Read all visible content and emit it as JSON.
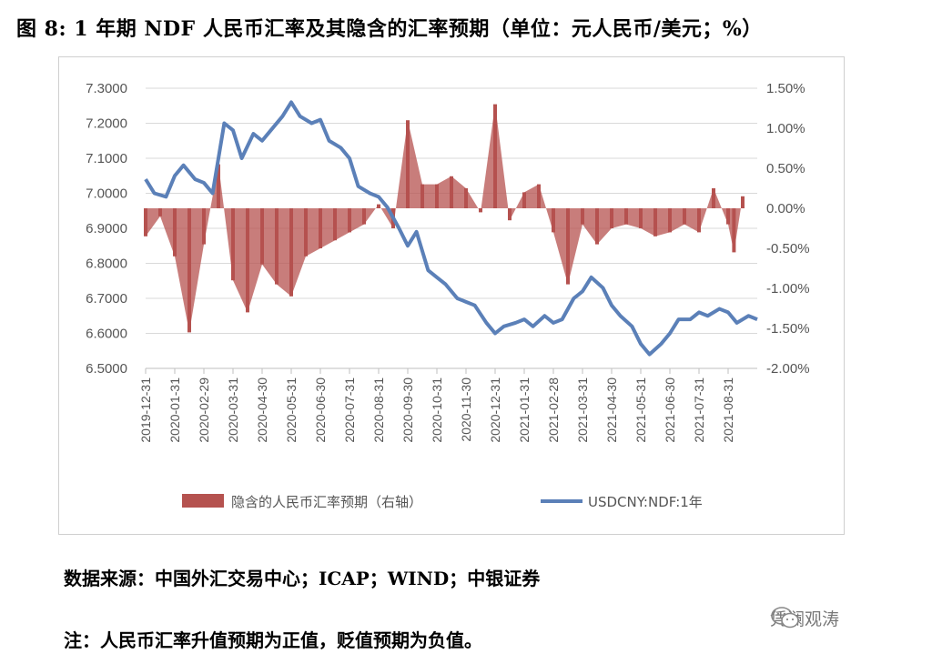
{
  "title": "图 8: 1 年期 NDF 人民币汇率及其隐含的汇率预期（单位：元人民币/美元；%）",
  "source": "数据来源：中国外汇交易中心；ICAP；WIND；中银证券",
  "note": "注：人民币汇率升值预期为正值，贬值预期为负值。",
  "watermark": "凭澜观涛",
  "colors": {
    "bar": "#b5524f",
    "line": "#5b80b8",
    "grid": "#d9d9d9"
  },
  "chart_data": {
    "type": "bar+line",
    "title": "",
    "y_left": {
      "min": 6.5,
      "max": 7.3,
      "ticks": [
        "7.3000",
        "7.2000",
        "7.1000",
        "7.0000",
        "6.9000",
        "6.8000",
        "6.7000",
        "6.6000",
        "6.5000"
      ]
    },
    "y_right": {
      "min": -2.0,
      "max": 1.5,
      "ticks": [
        "1.50%",
        "1.00%",
        "0.50%",
        "0.00%",
        "-0.50%",
        "-1.00%",
        "-1.50%",
        "-2.00%"
      ]
    },
    "x_ticks": [
      "2019-12-31",
      "2020-01-31",
      "2020-02-29",
      "2020-03-31",
      "2020-04-30",
      "2020-05-31",
      "2020-06-30",
      "2020-07-31",
      "2020-08-31",
      "2020-09-30",
      "2020-10-31",
      "2020-11-30",
      "2020-12-31",
      "2021-01-31",
      "2021-02-28",
      "2021-03-31",
      "2021-04-30",
      "2021-05-31",
      "2021-06-30",
      "2021-07-31",
      "2021-08-31"
    ],
    "grid": true,
    "legend_position": "bottom",
    "series": [
      {
        "name": "隐含的人民币汇率预期（右轴）",
        "type": "bar",
        "axis": "right",
        "unit": "%",
        "x": [
          0,
          0.5,
          1,
          1.5,
          2,
          2.5,
          3,
          3.5,
          4,
          4.5,
          5,
          5.5,
          6,
          6.5,
          7,
          7.5,
          8,
          8.5,
          9,
          9.5,
          10,
          10.5,
          11,
          11.5,
          12,
          12.5,
          13,
          13.5,
          14,
          14.5,
          15,
          15.5,
          16,
          16.5,
          17,
          17.5,
          18,
          18.5,
          19,
          19.5,
          20,
          20.2,
          20.5
        ],
        "values": [
          -0.35,
          -0.1,
          -0.6,
          -1.55,
          -0.45,
          0.55,
          -0.9,
          -1.3,
          -0.7,
          -0.95,
          -1.1,
          -0.6,
          -0.5,
          -0.4,
          -0.3,
          -0.2,
          0.05,
          -0.25,
          1.1,
          0.3,
          0.3,
          0.4,
          0.25,
          -0.05,
          1.3,
          -0.15,
          0.2,
          0.3,
          -0.3,
          -0.95,
          -0.2,
          -0.45,
          -0.25,
          -0.2,
          -0.25,
          -0.35,
          -0.3,
          -0.2,
          -0.3,
          0.25,
          -0.2,
          -0.55,
          0.15
        ]
      },
      {
        "name": "USDCNY:NDF:1年",
        "type": "line",
        "axis": "left",
        "x": [
          0,
          0.3,
          0.7,
          1.0,
          1.3,
          1.7,
          2.0,
          2.3,
          2.7,
          3.0,
          3.3,
          3.7,
          4.0,
          4.3,
          4.7,
          5.0,
          5.3,
          5.7,
          6.0,
          6.3,
          6.7,
          7.0,
          7.3,
          7.7,
          8.0,
          8.3,
          8.7,
          9.0,
          9.3,
          9.7,
          10.0,
          10.3,
          10.7,
          11.0,
          11.3,
          11.7,
          12.0,
          12.3,
          12.7,
          13.0,
          13.3,
          13.7,
          14.0,
          14.3,
          14.7,
          15.0,
          15.3,
          15.7,
          16.0,
          16.3,
          16.7,
          17.0,
          17.3,
          17.7,
          18.0,
          18.3,
          18.7,
          19.0,
          19.3,
          19.7,
          20.0,
          20.3,
          20.7,
          21.0
        ],
        "values": [
          7.04,
          7.0,
          6.99,
          7.05,
          7.08,
          7.04,
          7.03,
          7.0,
          7.2,
          7.18,
          7.1,
          7.17,
          7.15,
          7.18,
          7.22,
          7.26,
          7.22,
          7.2,
          7.21,
          7.15,
          7.13,
          7.1,
          7.02,
          7.0,
          6.99,
          6.96,
          6.9,
          6.85,
          6.89,
          6.78,
          6.76,
          6.74,
          6.7,
          6.69,
          6.68,
          6.63,
          6.6,
          6.62,
          6.63,
          6.64,
          6.62,
          6.65,
          6.63,
          6.64,
          6.7,
          6.72,
          6.76,
          6.73,
          6.68,
          6.65,
          6.62,
          6.57,
          6.54,
          6.57,
          6.6,
          6.64,
          6.64,
          6.66,
          6.65,
          6.67,
          6.66,
          6.63,
          6.65,
          6.64
        ]
      }
    ]
  }
}
